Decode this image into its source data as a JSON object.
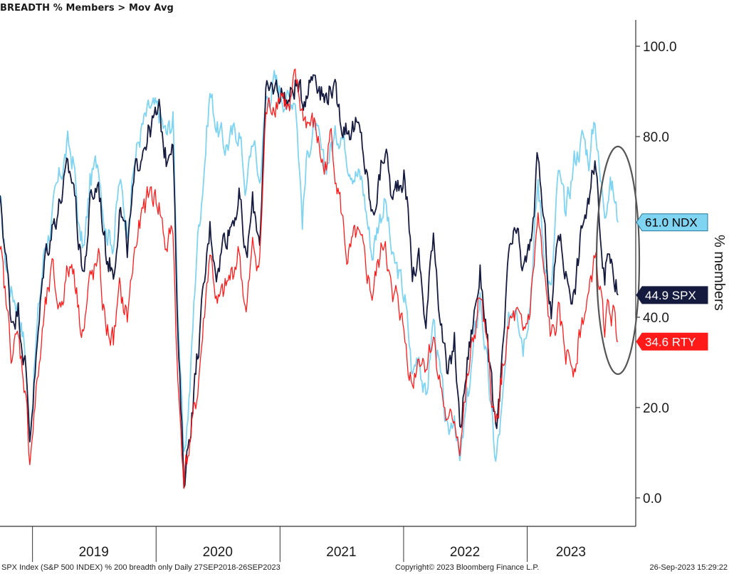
{
  "header": {
    "title": "BREADTH % Members > Mov Avg"
  },
  "footer": {
    "left": "SPX Index (S&P 500 INDEX) % 200 breadth only  Daily 27SEP2018-26SEP2023",
    "middle": "Copyright© 2023 Bloomberg Finance L.P.",
    "right": "26-Sep-2023 15:29:22"
  },
  "chart_data": {
    "type": "line",
    "title": "BREADTH % Members > Mov Avg",
    "ylabel": "% members",
    "ylim": [
      -6,
      106
    ],
    "yticks": [
      "0.0",
      "20.0",
      "40.0",
      "80.0",
      "100.0"
    ],
    "ytick_values": [
      0,
      20,
      40,
      80,
      100
    ],
    "x_range": [
      "2018-09-27",
      "2023-09-26"
    ],
    "x_dividers": [
      "2019-01-01",
      "2020-01-01",
      "2021-01-01",
      "2022-01-01",
      "2023-01-01"
    ],
    "x_year_labels": [
      {
        "label": "2019",
        "date": "2019-07-01"
      },
      {
        "label": "2020",
        "date": "2020-07-01"
      },
      {
        "label": "2021",
        "date": "2021-07-01"
      },
      {
        "label": "2022",
        "date": "2022-07-01"
      },
      {
        "label": "2023",
        "date": "2023-05-10"
      }
    ],
    "grid": false,
    "series": [
      {
        "name": "NDX",
        "color": "#7fd4f2",
        "last": 61.0,
        "tag": "61.0 NDX",
        "tag_text_color": "#000000",
        "points": [
          [
            "2018-09-27",
            66
          ],
          [
            "2018-10-12",
            53
          ],
          [
            "2018-10-30",
            46
          ],
          [
            "2018-11-20",
            43
          ],
          [
            "2018-12-10",
            33
          ],
          [
            "2018-12-24",
            14
          ],
          [
            "2019-01-15",
            38
          ],
          [
            "2019-02-05",
            55
          ],
          [
            "2019-02-28",
            62
          ],
          [
            "2019-03-20",
            70
          ],
          [
            "2019-04-15",
            78
          ],
          [
            "2019-05-03",
            74
          ],
          [
            "2019-05-20",
            58
          ],
          [
            "2019-06-03",
            55
          ],
          [
            "2019-06-20",
            70
          ],
          [
            "2019-07-15",
            75
          ],
          [
            "2019-08-05",
            60
          ],
          [
            "2019-08-28",
            57
          ],
          [
            "2019-09-15",
            70
          ],
          [
            "2019-10-08",
            60
          ],
          [
            "2019-10-30",
            75
          ],
          [
            "2019-11-20",
            82
          ],
          [
            "2019-12-15",
            86
          ],
          [
            "2020-01-10",
            85
          ],
          [
            "2020-01-31",
            80
          ],
          [
            "2020-02-20",
            84
          ],
          [
            "2020-03-05",
            44
          ],
          [
            "2020-03-23",
            7
          ],
          [
            "2020-04-10",
            25
          ],
          [
            "2020-04-30",
            55
          ],
          [
            "2020-05-20",
            72
          ],
          [
            "2020-06-08",
            90
          ],
          [
            "2020-06-30",
            82
          ],
          [
            "2020-07-20",
            78
          ],
          [
            "2020-08-15",
            80
          ],
          [
            "2020-09-02",
            82
          ],
          [
            "2020-09-23",
            68
          ],
          [
            "2020-10-12",
            80
          ],
          [
            "2020-11-02",
            70
          ],
          [
            "2020-11-20",
            88
          ],
          [
            "2020-12-15",
            92
          ],
          [
            "2021-01-05",
            90
          ],
          [
            "2021-01-29",
            88
          ],
          [
            "2021-02-15",
            90
          ],
          [
            "2021-03-08",
            62
          ],
          [
            "2021-03-25",
            78
          ],
          [
            "2021-04-15",
            82
          ],
          [
            "2021-05-12",
            72
          ],
          [
            "2021-06-01",
            78
          ],
          [
            "2021-06-30",
            82
          ],
          [
            "2021-07-20",
            76
          ],
          [
            "2021-08-15",
            72
          ],
          [
            "2021-09-01",
            70
          ],
          [
            "2021-09-30",
            54
          ],
          [
            "2021-10-20",
            62
          ],
          [
            "2021-11-08",
            66
          ],
          [
            "2021-11-30",
            52
          ],
          [
            "2021-12-15",
            50
          ],
          [
            "2022-01-05",
            44
          ],
          [
            "2022-01-27",
            27
          ],
          [
            "2022-02-15",
            33
          ],
          [
            "2022-03-08",
            21
          ],
          [
            "2022-03-30",
            40
          ],
          [
            "2022-04-20",
            26
          ],
          [
            "2022-05-12",
            12
          ],
          [
            "2022-05-31",
            20
          ],
          [
            "2022-06-16",
            7
          ],
          [
            "2022-07-08",
            21
          ],
          [
            "2022-08-15",
            45
          ],
          [
            "2022-08-31",
            33
          ],
          [
            "2022-09-15",
            20
          ],
          [
            "2022-09-30",
            8
          ],
          [
            "2022-10-20",
            20
          ],
          [
            "2022-11-10",
            40
          ],
          [
            "2022-11-30",
            45
          ],
          [
            "2022-12-20",
            35
          ],
          [
            "2023-01-10",
            45
          ],
          [
            "2023-02-02",
            70
          ],
          [
            "2023-02-20",
            55
          ],
          [
            "2023-03-13",
            45
          ],
          [
            "2023-04-03",
            72
          ],
          [
            "2023-04-25",
            62
          ],
          [
            "2023-05-20",
            75
          ],
          [
            "2023-06-15",
            80
          ],
          [
            "2023-07-05",
            75
          ],
          [
            "2023-07-20",
            85
          ],
          [
            "2023-08-05",
            70
          ],
          [
            "2023-08-18",
            65
          ],
          [
            "2023-09-01",
            70
          ],
          [
            "2023-09-12",
            68
          ],
          [
            "2023-09-26",
            61
          ]
        ]
      },
      {
        "name": "SPX",
        "color": "#151a3f",
        "last": 44.9,
        "tag": "44.9 SPX",
        "tag_text_color": "#ffffff",
        "points": [
          [
            "2018-09-27",
            67
          ],
          [
            "2018-10-12",
            55
          ],
          [
            "2018-10-30",
            40
          ],
          [
            "2018-11-20",
            42
          ],
          [
            "2018-12-10",
            30
          ],
          [
            "2018-12-24",
            14
          ],
          [
            "2019-01-15",
            33
          ],
          [
            "2019-02-05",
            53
          ],
          [
            "2019-02-28",
            60
          ],
          [
            "2019-03-20",
            65
          ],
          [
            "2019-04-15",
            72
          ],
          [
            "2019-05-03",
            70
          ],
          [
            "2019-05-20",
            55
          ],
          [
            "2019-06-03",
            50
          ],
          [
            "2019-06-20",
            65
          ],
          [
            "2019-07-15",
            70
          ],
          [
            "2019-08-05",
            55
          ],
          [
            "2019-08-28",
            50
          ],
          [
            "2019-09-15",
            65
          ],
          [
            "2019-10-08",
            55
          ],
          [
            "2019-10-30",
            70
          ],
          [
            "2019-11-20",
            78
          ],
          [
            "2019-12-15",
            82
          ],
          [
            "2020-01-10",
            85
          ],
          [
            "2020-01-31",
            75
          ],
          [
            "2020-02-20",
            82
          ],
          [
            "2020-03-05",
            35
          ],
          [
            "2020-03-23",
            4
          ],
          [
            "2020-04-10",
            15
          ],
          [
            "2020-04-30",
            30
          ],
          [
            "2020-05-20",
            45
          ],
          [
            "2020-06-08",
            60
          ],
          [
            "2020-06-30",
            50
          ],
          [
            "2020-07-20",
            58
          ],
          [
            "2020-08-15",
            62
          ],
          [
            "2020-09-02",
            67
          ],
          [
            "2020-09-23",
            52
          ],
          [
            "2020-10-12",
            65
          ],
          [
            "2020-11-02",
            58
          ],
          [
            "2020-11-20",
            88
          ],
          [
            "2020-12-15",
            91
          ],
          [
            "2021-01-05",
            90
          ],
          [
            "2021-01-29",
            88
          ],
          [
            "2021-02-15",
            92
          ],
          [
            "2021-03-08",
            88
          ],
          [
            "2021-03-25",
            92
          ],
          [
            "2021-04-15",
            95
          ],
          [
            "2021-05-12",
            88
          ],
          [
            "2021-06-01",
            92
          ],
          [
            "2021-06-30",
            84
          ],
          [
            "2021-07-20",
            82
          ],
          [
            "2021-08-15",
            82
          ],
          [
            "2021-09-01",
            78
          ],
          [
            "2021-09-30",
            62
          ],
          [
            "2021-10-20",
            70
          ],
          [
            "2021-11-08",
            78
          ],
          [
            "2021-11-30",
            65
          ],
          [
            "2021-12-15",
            70
          ],
          [
            "2022-01-05",
            72
          ],
          [
            "2022-01-27",
            50
          ],
          [
            "2022-02-15",
            53
          ],
          [
            "2022-03-08",
            38
          ],
          [
            "2022-03-30",
            60
          ],
          [
            "2022-04-20",
            40
          ],
          [
            "2022-05-12",
            25
          ],
          [
            "2022-05-31",
            35
          ],
          [
            "2022-06-16",
            15
          ],
          [
            "2022-07-08",
            30
          ],
          [
            "2022-08-15",
            50
          ],
          [
            "2022-08-31",
            40
          ],
          [
            "2022-09-15",
            26
          ],
          [
            "2022-09-30",
            14
          ],
          [
            "2022-10-20",
            30
          ],
          [
            "2022-11-10",
            55
          ],
          [
            "2022-11-30",
            58
          ],
          [
            "2022-12-20",
            50
          ],
          [
            "2023-01-10",
            55
          ],
          [
            "2023-02-02",
            75
          ],
          [
            "2023-02-20",
            60
          ],
          [
            "2023-03-13",
            40
          ],
          [
            "2023-04-03",
            60
          ],
          [
            "2023-04-25",
            50
          ],
          [
            "2023-05-20",
            45
          ],
          [
            "2023-06-15",
            62
          ],
          [
            "2023-07-05",
            65
          ],
          [
            "2023-07-20",
            75
          ],
          [
            "2023-08-05",
            60
          ],
          [
            "2023-08-18",
            50
          ],
          [
            "2023-09-01",
            55
          ],
          [
            "2023-09-12",
            52
          ],
          [
            "2023-09-26",
            44.9
          ]
        ]
      },
      {
        "name": "RTY",
        "color": "#ff1a1a",
        "last": 34.6,
        "tag": "34.6 RTY",
        "tag_text_color": "#ffffff",
        "points": [
          [
            "2018-09-27",
            55
          ],
          [
            "2018-10-12",
            45
          ],
          [
            "2018-10-30",
            33
          ],
          [
            "2018-11-20",
            35
          ],
          [
            "2018-12-10",
            25
          ],
          [
            "2018-12-24",
            9
          ],
          [
            "2019-01-15",
            25
          ],
          [
            "2019-02-05",
            40
          ],
          [
            "2019-02-28",
            50
          ],
          [
            "2019-03-20",
            42
          ],
          [
            "2019-04-15",
            50
          ],
          [
            "2019-05-03",
            52
          ],
          [
            "2019-05-20",
            40
          ],
          [
            "2019-06-03",
            38
          ],
          [
            "2019-06-20",
            48
          ],
          [
            "2019-07-15",
            52
          ],
          [
            "2019-08-05",
            38
          ],
          [
            "2019-08-28",
            35
          ],
          [
            "2019-09-15",
            45
          ],
          [
            "2019-10-08",
            40
          ],
          [
            "2019-10-30",
            55
          ],
          [
            "2019-11-20",
            62
          ],
          [
            "2019-12-15",
            68
          ],
          [
            "2020-01-10",
            65
          ],
          [
            "2020-01-31",
            55
          ],
          [
            "2020-02-20",
            60
          ],
          [
            "2020-03-05",
            25
          ],
          [
            "2020-03-23",
            5
          ],
          [
            "2020-04-10",
            12
          ],
          [
            "2020-04-30",
            22
          ],
          [
            "2020-05-20",
            38
          ],
          [
            "2020-06-08",
            55
          ],
          [
            "2020-06-30",
            42
          ],
          [
            "2020-07-20",
            45
          ],
          [
            "2020-08-15",
            50
          ],
          [
            "2020-09-02",
            55
          ],
          [
            "2020-09-23",
            40
          ],
          [
            "2020-10-12",
            55
          ],
          [
            "2020-11-02",
            52
          ],
          [
            "2020-11-20",
            85
          ],
          [
            "2020-12-15",
            88
          ],
          [
            "2021-01-05",
            90
          ],
          [
            "2021-01-29",
            85
          ],
          [
            "2021-02-15",
            92
          ],
          [
            "2021-03-08",
            85
          ],
          [
            "2021-03-25",
            83
          ],
          [
            "2021-04-15",
            82
          ],
          [
            "2021-05-12",
            72
          ],
          [
            "2021-06-01",
            80
          ],
          [
            "2021-06-30",
            64
          ],
          [
            "2021-07-20",
            52
          ],
          [
            "2021-08-15",
            58
          ],
          [
            "2021-09-01",
            54
          ],
          [
            "2021-09-30",
            45
          ],
          [
            "2021-10-20",
            52
          ],
          [
            "2021-11-08",
            58
          ],
          [
            "2021-11-30",
            42
          ],
          [
            "2021-12-15",
            45
          ],
          [
            "2022-01-05",
            35
          ],
          [
            "2022-01-27",
            25
          ],
          [
            "2022-02-15",
            32
          ],
          [
            "2022-03-08",
            30
          ],
          [
            "2022-03-30",
            36
          ],
          [
            "2022-04-20",
            25
          ],
          [
            "2022-05-12",
            15
          ],
          [
            "2022-05-31",
            18
          ],
          [
            "2022-06-16",
            12
          ],
          [
            "2022-07-08",
            25
          ],
          [
            "2022-08-15",
            45
          ],
          [
            "2022-08-31",
            35
          ],
          [
            "2022-09-15",
            25
          ],
          [
            "2022-09-30",
            15
          ],
          [
            "2022-10-20",
            28
          ],
          [
            "2022-11-10",
            38
          ],
          [
            "2022-11-30",
            40
          ],
          [
            "2022-12-20",
            35
          ],
          [
            "2023-01-10",
            42
          ],
          [
            "2023-02-02",
            62
          ],
          [
            "2023-02-20",
            48
          ],
          [
            "2023-03-13",
            35
          ],
          [
            "2023-04-03",
            40
          ],
          [
            "2023-04-25",
            32
          ],
          [
            "2023-05-20",
            30
          ],
          [
            "2023-06-15",
            40
          ],
          [
            "2023-07-05",
            45
          ],
          [
            "2023-07-20",
            55
          ],
          [
            "2023-08-05",
            45
          ],
          [
            "2023-08-18",
            38
          ],
          [
            "2023-09-01",
            42
          ],
          [
            "2023-09-12",
            40
          ],
          [
            "2023-09-26",
            34.6
          ]
        ]
      }
    ],
    "annotation": {
      "shape": "ellipse",
      "around": "latest readings",
      "color": "#555555"
    }
  }
}
